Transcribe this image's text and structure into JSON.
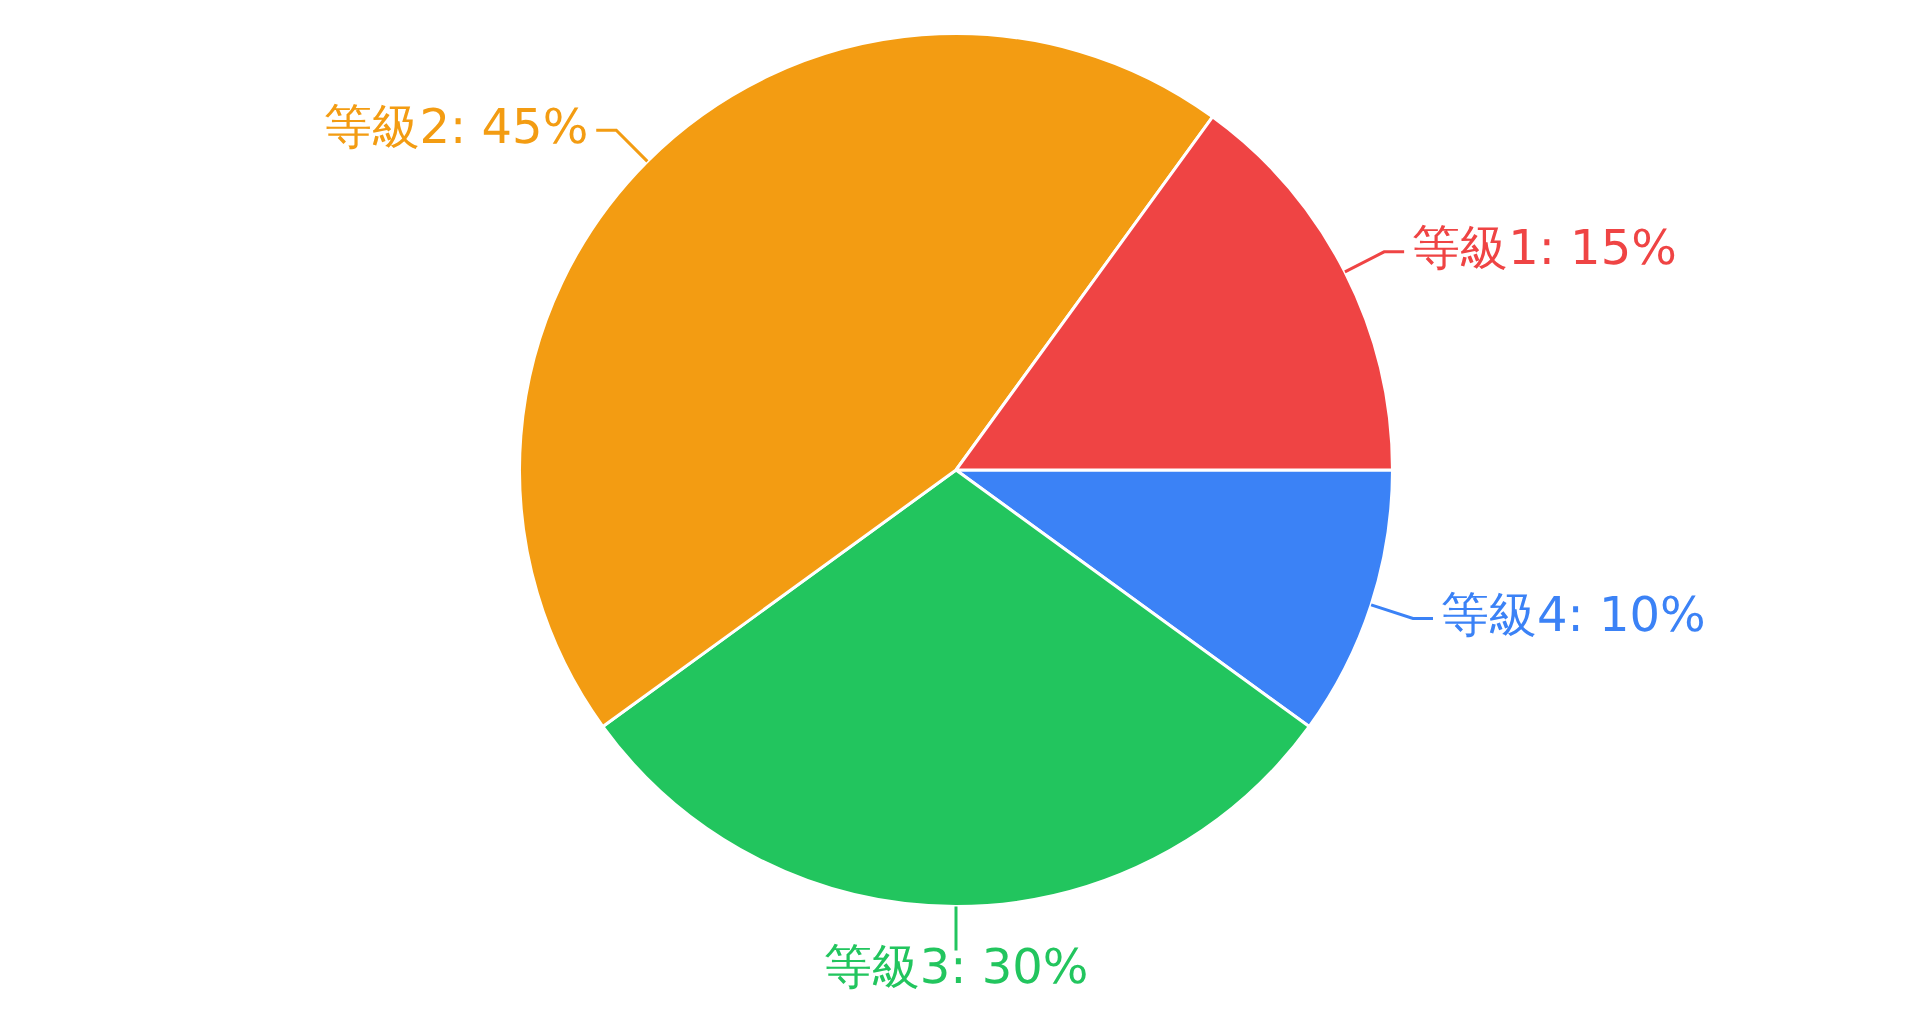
{
  "chart_data": {
    "type": "pie",
    "categories": [
      "等級1",
      "等級2",
      "等級3",
      "等級4"
    ],
    "values": [
      15,
      45,
      30,
      10
    ],
    "value_labels": [
      "15%",
      "45%",
      "30%",
      "10%"
    ],
    "colors": [
      "#ef4444",
      "#f39c12",
      "#22c55e",
      "#3b82f6"
    ],
    "legend": false
  }
}
